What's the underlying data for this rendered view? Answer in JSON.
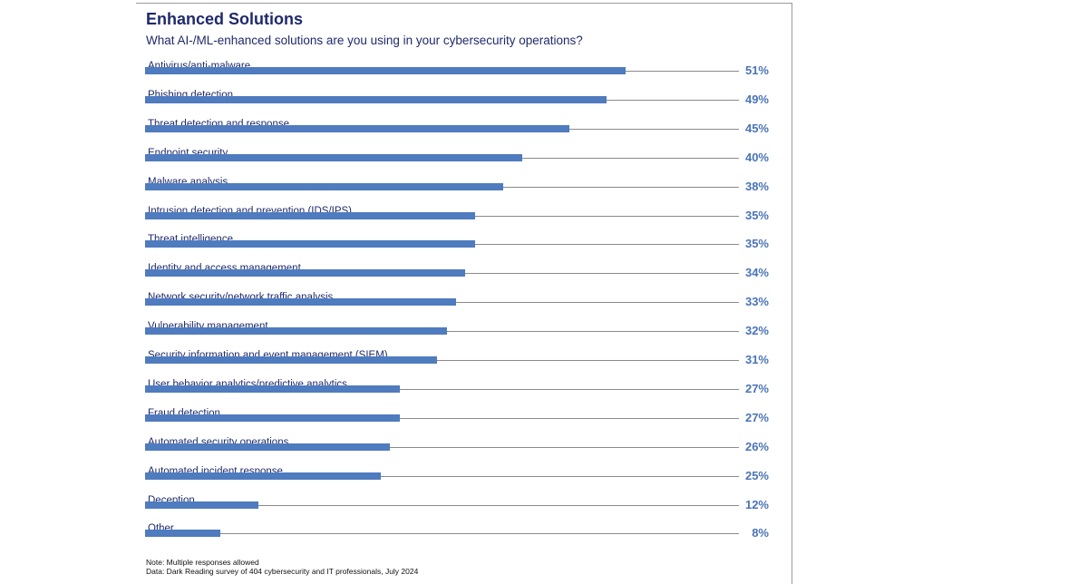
{
  "chart_data": {
    "type": "bar",
    "orientation": "horizontal",
    "title": "Enhanced Solutions",
    "subtitle": "What AI-/ML-enhanced solutions are you using in your cybersecurity operations?",
    "categories": [
      "Antivirus/anti-malware",
      "Phishing detection",
      "Threat detection and response",
      "Endpoint security",
      "Malware analysis",
      "Intrusion detection and prevention (IDS/IPS)",
      "Threat intelligence",
      "Identity and access management",
      "Network security/network traffic analysis",
      "Vulnerability management",
      "Security information and event management (SIEM)",
      "User behavior analytics/predictive analytics",
      "Fraud detection",
      "Automated security operations",
      "Automated incident response",
      "Deception",
      "Other"
    ],
    "values": [
      51,
      49,
      45,
      40,
      38,
      35,
      35,
      34,
      33,
      32,
      31,
      27,
      27,
      26,
      25,
      12,
      8
    ],
    "value_labels": [
      "51%",
      "49%",
      "45%",
      "40%",
      "38%",
      "35%",
      "35%",
      "34%",
      "33%",
      "32%",
      "31%",
      "27%",
      "27%",
      "26%",
      "25%",
      "12%",
      "8%"
    ],
    "unit": "%",
    "xlim": [
      0,
      63
    ],
    "grid": false,
    "colors": {
      "bar": "#4f7bbf",
      "text": "#1f2a6b",
      "value": "#4a74b8",
      "track": "#8a8a8a"
    },
    "note": "Note: Multiple responses allowed",
    "source": "Data: Dark Reading survey of 404 cybersecurity and IT professionals, July 2024"
  }
}
